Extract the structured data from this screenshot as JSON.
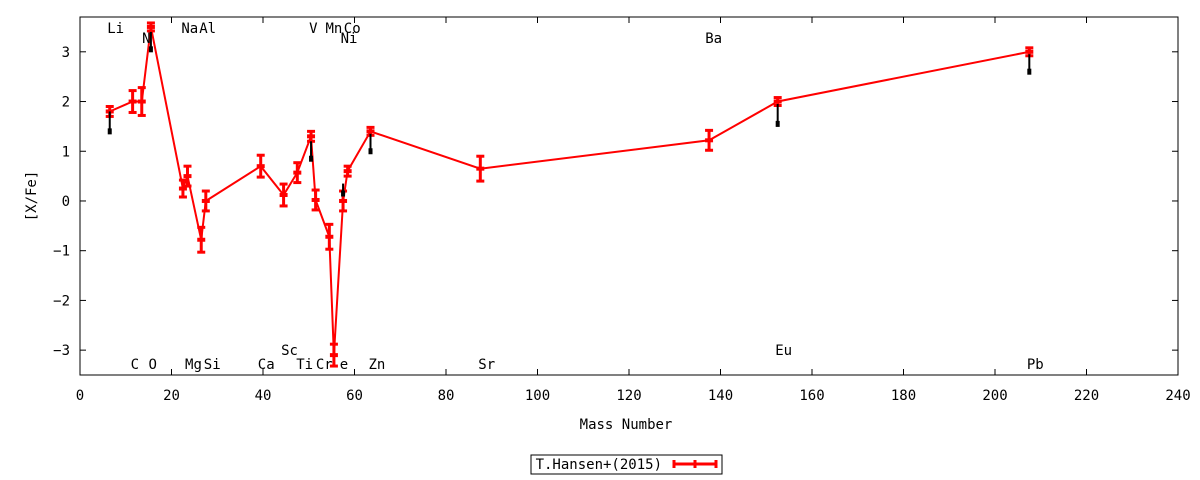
{
  "chart_data": {
    "type": "line",
    "title": "",
    "xlabel": "Mass Number",
    "ylabel": "[X/Fe]",
    "xlim": [
      0,
      240
    ],
    "ylim": [
      -3.5,
      3.7
    ],
    "xticks": [
      0,
      20,
      40,
      60,
      80,
      100,
      120,
      140,
      160,
      180,
      200,
      220,
      240
    ],
    "yticks": [
      -3,
      -2,
      -1,
      0,
      1,
      2,
      3
    ],
    "grid": false,
    "legend_position": "bottom-center",
    "colors": {
      "series": "#ff0000",
      "marker": "#000000"
    },
    "series": [
      {
        "name": "T.Hansen+(2015)",
        "points": [
          {
            "x": 6.5,
            "y": 1.8,
            "err": 0.1
          },
          {
            "x": 11.5,
            "y": 2.0,
            "err": 0.22
          },
          {
            "x": 13.5,
            "y": 2.0,
            "err": 0.28
          },
          {
            "x": 15.5,
            "y": 3.5,
            "err": 0.08
          },
          {
            "x": 22.5,
            "y": 0.25,
            "err": 0.17
          },
          {
            "x": 23.5,
            "y": 0.5,
            "err": 0.2
          },
          {
            "x": 26.5,
            "y": -0.78,
            "err": 0.25
          },
          {
            "x": 27.5,
            "y": 0.0,
            "err": 0.2
          },
          {
            "x": 39.5,
            "y": 0.7,
            "err": 0.22
          },
          {
            "x": 44.5,
            "y": 0.12,
            "err": 0.22
          },
          {
            "x": 47.5,
            "y": 0.57,
            "err": 0.2
          },
          {
            "x": 50.5,
            "y": 1.3,
            "err": 0.1
          },
          {
            "x": 51.5,
            "y": 0.02,
            "err": 0.2
          },
          {
            "x": 54.5,
            "y": -0.72,
            "err": 0.25
          },
          {
            "x": 55.5,
            "y": -3.1,
            "err": 0.22
          },
          {
            "x": 57.5,
            "y": 0.0,
            "err": 0.2
          },
          {
            "x": 58.5,
            "y": 0.6,
            "err": 0.1
          },
          {
            "x": 63.5,
            "y": 1.4,
            "err": 0.08
          },
          {
            "x": 87.5,
            "y": 0.65,
            "err": 0.25
          },
          {
            "x": 137.5,
            "y": 1.22,
            "err": 0.2
          },
          {
            "x": 152.5,
            "y": 2.0,
            "err": 0.08
          },
          {
            "x": 207.5,
            "y": 3.0,
            "err": 0.08
          }
        ]
      }
    ],
    "markers": [
      {
        "x": 6.5,
        "y": 1.4,
        "top": 1.8
      },
      {
        "x": 15.5,
        "y": 3.05,
        "top": 3.4
      },
      {
        "x": 50.5,
        "y": 0.85,
        "top": 1.2
      },
      {
        "x": 57.5,
        "y": 0.15,
        "top": 0.35
      },
      {
        "x": 63.5,
        "y": 1.0,
        "top": 1.35
      },
      {
        "x": 152.5,
        "y": 1.55,
        "top": 1.95
      },
      {
        "x": 207.5,
        "y": 2.6,
        "top": 2.95
      }
    ],
    "element_labels": [
      {
        "text": "Li",
        "x": 7.8,
        "row": "top1"
      },
      {
        "text": "N",
        "x": 14.5,
        "row": "top2"
      },
      {
        "text": "Na",
        "x": 24.0,
        "row": "top1"
      },
      {
        "text": "Al",
        "x": 27.9,
        "row": "top1"
      },
      {
        "text": "V",
        "x": 51.0,
        "row": "top1"
      },
      {
        "text": "Mn",
        "x": 55.5,
        "row": "top1"
      },
      {
        "text": "Co",
        "x": 59.5,
        "row": "top1"
      },
      {
        "text": "Ni",
        "x": 58.8,
        "row": "top2"
      },
      {
        "text": "Ba",
        "x": 138.5,
        "row": "top2"
      },
      {
        "text": "C",
        "x": 12.0,
        "row": "bottom1"
      },
      {
        "text": "O",
        "x": 15.9,
        "row": "bottom1"
      },
      {
        "text": "Mg",
        "x": 24.8,
        "row": "bottom1"
      },
      {
        "text": "Si",
        "x": 28.9,
        "row": "bottom1"
      },
      {
        "text": "Ca",
        "x": 40.7,
        "row": "bottom1"
      },
      {
        "text": "Ti",
        "x": 49.1,
        "row": "bottom1"
      },
      {
        "text": "Cr",
        "x": 53.4,
        "row": "bottom1"
      },
      {
        "text": "e",
        "x": 57.7,
        "row": "bottom1"
      },
      {
        "text": "Zn",
        "x": 64.9,
        "row": "bottom1"
      },
      {
        "text": "Sr",
        "x": 88.9,
        "row": "bottom1"
      },
      {
        "text": "Pb",
        "x": 208.8,
        "row": "bottom1"
      },
      {
        "text": "Sc",
        "x": 45.8,
        "row": "bottom2"
      },
      {
        "text": "Eu",
        "x": 153.8,
        "row": "bottom2"
      }
    ]
  }
}
